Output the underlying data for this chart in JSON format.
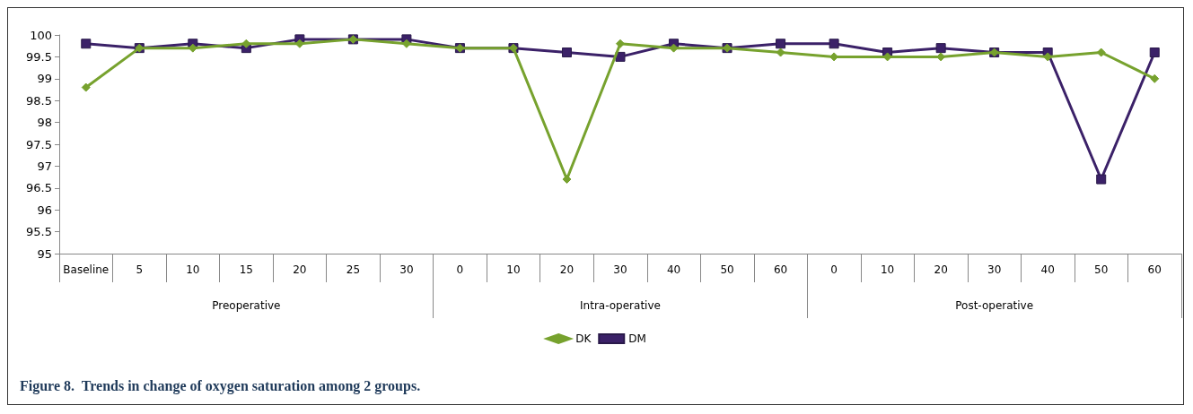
{
  "chart_data": {
    "type": "line",
    "title": "Figure 8.  Trends in change of oxygen saturation among 2 groups.",
    "categories": [
      "Baseline",
      "5",
      "10",
      "15",
      "20",
      "25",
      "30",
      "0",
      "10",
      "20",
      "30",
      "40",
      "50",
      "60",
      "0",
      "10",
      "20",
      "30",
      "40",
      "50",
      "60"
    ],
    "annotations": [
      "Preoperative",
      "Intra-operative",
      "Post-operative"
    ],
    "series": [
      {
        "name": "DK",
        "color": "#77a22e",
        "marker": "diamond",
        "values": [
          98.8,
          99.7,
          99.7,
          99.8,
          99.8,
          99.9,
          99.8,
          99.7,
          99.7,
          96.7,
          99.8,
          99.7,
          99.7,
          99.6,
          99.5,
          99.5,
          99.5,
          99.6,
          99.5,
          99.6,
          99.0
        ]
      },
      {
        "name": "DM",
        "color": "#3b2168",
        "marker": "square",
        "values": [
          99.8,
          99.7,
          99.8,
          99.7,
          99.9,
          99.9,
          99.9,
          99.7,
          99.7,
          99.6,
          99.5,
          99.8,
          99.7,
          99.8,
          99.8,
          99.6,
          99.7,
          99.6,
          99.6,
          96.7,
          99.6
        ]
      }
    ],
    "ylim": [
      95,
      100
    ],
    "yticks": [
      95,
      95.5,
      96,
      96.5,
      97,
      97.5,
      98,
      98.5,
      99,
      99.5,
      100
    ],
    "grid": false,
    "legend": "bottom",
    "line_style": "solid"
  }
}
